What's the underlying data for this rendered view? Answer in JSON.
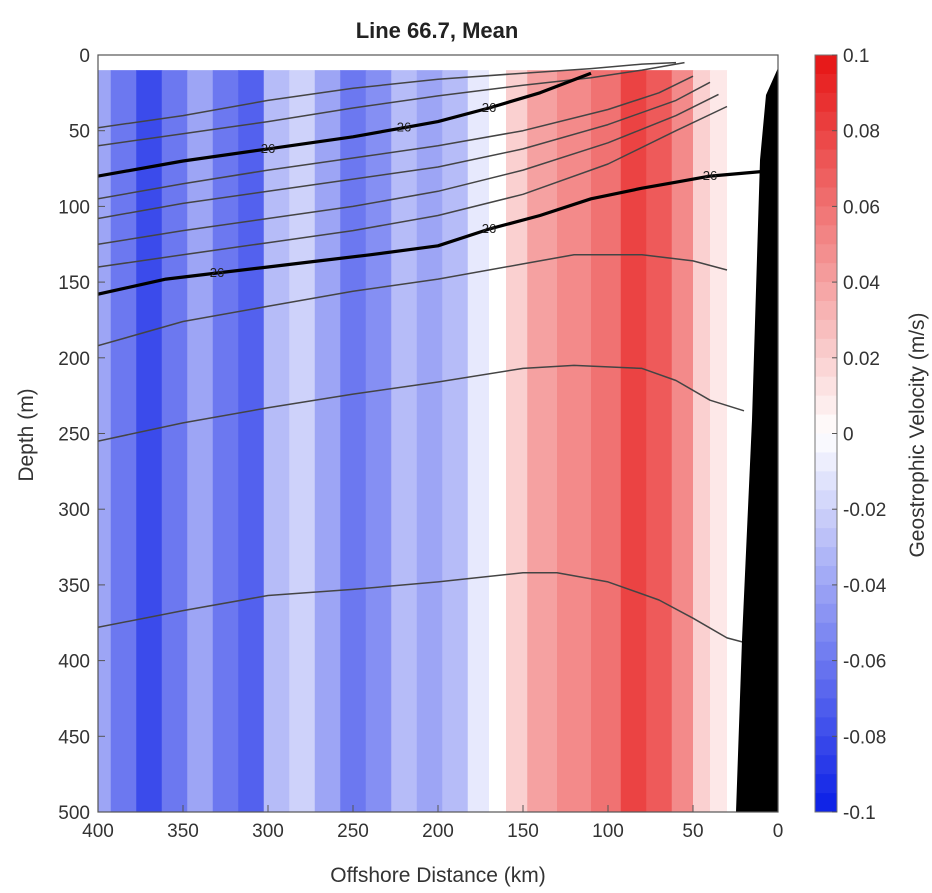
{
  "chart_data": {
    "type": "heatmap",
    "title": "Line 66.7, Mean",
    "xlabel": "Offshore Distance (km)",
    "ylabel": "Depth (m)",
    "colorbar_label": "Geostrophic Velocity (m/s)",
    "xlim": [
      400,
      0
    ],
    "ylim": [
      0,
      500
    ],
    "clim": [
      -0.1,
      0.1
    ],
    "x_ticks": [
      "400",
      "350",
      "300",
      "250",
      "200",
      "150",
      "100",
      "50",
      "0"
    ],
    "y_ticks": [
      "0",
      "50",
      "100",
      "150",
      "200",
      "250",
      "300",
      "350",
      "400",
      "450",
      "500"
    ],
    "colorbar_ticks": [
      "0.1",
      "0.08",
      "0.06",
      "0.04",
      "0.02",
      "0",
      "-0.02",
      "-0.04",
      "-0.06",
      "-0.08",
      "-0.1"
    ],
    "colormap": {
      "negative": "#0a1ee6",
      "zero": "#ffffff",
      "positive": "#e61414"
    },
    "velocity_columns": [
      {
        "x": 400,
        "v": -0.04
      },
      {
        "x": 385,
        "v": -0.06
      },
      {
        "x": 370,
        "v": -0.08
      },
      {
        "x": 355,
        "v": -0.06
      },
      {
        "x": 340,
        "v": -0.04
      },
      {
        "x": 325,
        "v": -0.06
      },
      {
        "x": 310,
        "v": -0.07
      },
      {
        "x": 295,
        "v": -0.03
      },
      {
        "x": 280,
        "v": -0.02
      },
      {
        "x": 265,
        "v": -0.04
      },
      {
        "x": 250,
        "v": -0.06
      },
      {
        "x": 235,
        "v": -0.05
      },
      {
        "x": 220,
        "v": -0.03
      },
      {
        "x": 205,
        "v": -0.04
      },
      {
        "x": 190,
        "v": -0.03
      },
      {
        "x": 175,
        "v": -0.01
      },
      {
        "x": 165,
        "v": 0.0
      },
      {
        "x": 155,
        "v": 0.02
      },
      {
        "x": 140,
        "v": 0.04
      },
      {
        "x": 120,
        "v": 0.05
      },
      {
        "x": 100,
        "v": 0.06
      },
      {
        "x": 85,
        "v": 0.08
      },
      {
        "x": 70,
        "v": 0.07
      },
      {
        "x": 55,
        "v": 0.05
      },
      {
        "x": 45,
        "v": 0.02
      },
      {
        "x": 35,
        "v": 0.01
      },
      {
        "x": 25,
        "v": 0.0
      },
      {
        "x": 10,
        "v": 0.0
      },
      {
        "x": 0,
        "v": 0.0
      }
    ],
    "contours": [
      {
        "bold": false,
        "points": [
          [
            400,
            48
          ],
          [
            350,
            40
          ],
          [
            300,
            30
          ],
          [
            250,
            22
          ],
          [
            200,
            16
          ],
          [
            150,
            12
          ],
          [
            110,
            9
          ],
          [
            80,
            6
          ],
          [
            60,
            5
          ]
        ]
      },
      {
        "bold": false,
        "points": [
          [
            400,
            60
          ],
          [
            350,
            52
          ],
          [
            300,
            44
          ],
          [
            250,
            35
          ],
          [
            200,
            27
          ],
          [
            150,
            20
          ],
          [
            110,
            15
          ],
          [
            80,
            10
          ],
          [
            55,
            5
          ]
        ]
      },
      {
        "bold": true,
        "label": "26",
        "points": [
          [
            400,
            80
          ],
          [
            350,
            70
          ],
          [
            300,
            62
          ],
          [
            250,
            54
          ],
          [
            220,
            48
          ],
          [
            200,
            44
          ],
          [
            170,
            35
          ],
          [
            140,
            25
          ],
          [
            110,
            12
          ]
        ]
      },
      {
        "bold": false,
        "points": [
          [
            400,
            95
          ],
          [
            350,
            85
          ],
          [
            300,
            76
          ],
          [
            250,
            68
          ],
          [
            200,
            60
          ],
          [
            150,
            50
          ],
          [
            100,
            36
          ],
          [
            70,
            25
          ],
          [
            50,
            14
          ]
        ]
      },
      {
        "bold": false,
        "points": [
          [
            400,
            108
          ],
          [
            350,
            98
          ],
          [
            300,
            90
          ],
          [
            250,
            82
          ],
          [
            200,
            74
          ],
          [
            150,
            62
          ],
          [
            100,
            46
          ],
          [
            60,
            30
          ],
          [
            40,
            18
          ]
        ]
      },
      {
        "bold": false,
        "points": [
          [
            400,
            125
          ],
          [
            350,
            116
          ],
          [
            300,
            108
          ],
          [
            250,
            100
          ],
          [
            200,
            90
          ],
          [
            150,
            76
          ],
          [
            100,
            58
          ],
          [
            60,
            40
          ],
          [
            35,
            26
          ]
        ]
      },
      {
        "bold": false,
        "points": [
          [
            400,
            140
          ],
          [
            350,
            132
          ],
          [
            300,
            124
          ],
          [
            250,
            116
          ],
          [
            200,
            106
          ],
          [
            150,
            92
          ],
          [
            100,
            72
          ],
          [
            60,
            50
          ],
          [
            30,
            34
          ]
        ]
      },
      {
        "bold": true,
        "label": "26",
        "points": [
          [
            400,
            158
          ],
          [
            360,
            148
          ],
          [
            330,
            144
          ],
          [
            300,
            140
          ],
          [
            270,
            136
          ],
          [
            240,
            132
          ],
          [
            200,
            126
          ],
          [
            170,
            115
          ],
          [
            140,
            106
          ],
          [
            110,
            95
          ],
          [
            80,
            88
          ],
          [
            60,
            84
          ],
          [
            40,
            80
          ],
          [
            20,
            78
          ],
          [
            10,
            77
          ]
        ]
      },
      {
        "bold": false,
        "points": [
          [
            400,
            192
          ],
          [
            350,
            176
          ],
          [
            300,
            166
          ],
          [
            250,
            156
          ],
          [
            200,
            148
          ],
          [
            150,
            138
          ],
          [
            120,
            132
          ],
          [
            80,
            132
          ],
          [
            50,
            136
          ],
          [
            30,
            142
          ]
        ]
      },
      {
        "bold": false,
        "points": [
          [
            400,
            255
          ],
          [
            350,
            243
          ],
          [
            300,
            233
          ],
          [
            250,
            224
          ],
          [
            200,
            216
          ],
          [
            150,
            207
          ],
          [
            120,
            205
          ],
          [
            80,
            207
          ],
          [
            60,
            215
          ],
          [
            40,
            228
          ],
          [
            20,
            235
          ]
        ]
      },
      {
        "bold": false,
        "points": [
          [
            400,
            378
          ],
          [
            350,
            367
          ],
          [
            300,
            357
          ],
          [
            250,
            353
          ],
          [
            200,
            348
          ],
          [
            150,
            342
          ],
          [
            130,
            342
          ],
          [
            100,
            348
          ],
          [
            70,
            360
          ],
          [
            50,
            372
          ],
          [
            30,
            385
          ],
          [
            20,
            388
          ]
        ]
      }
    ]
  }
}
